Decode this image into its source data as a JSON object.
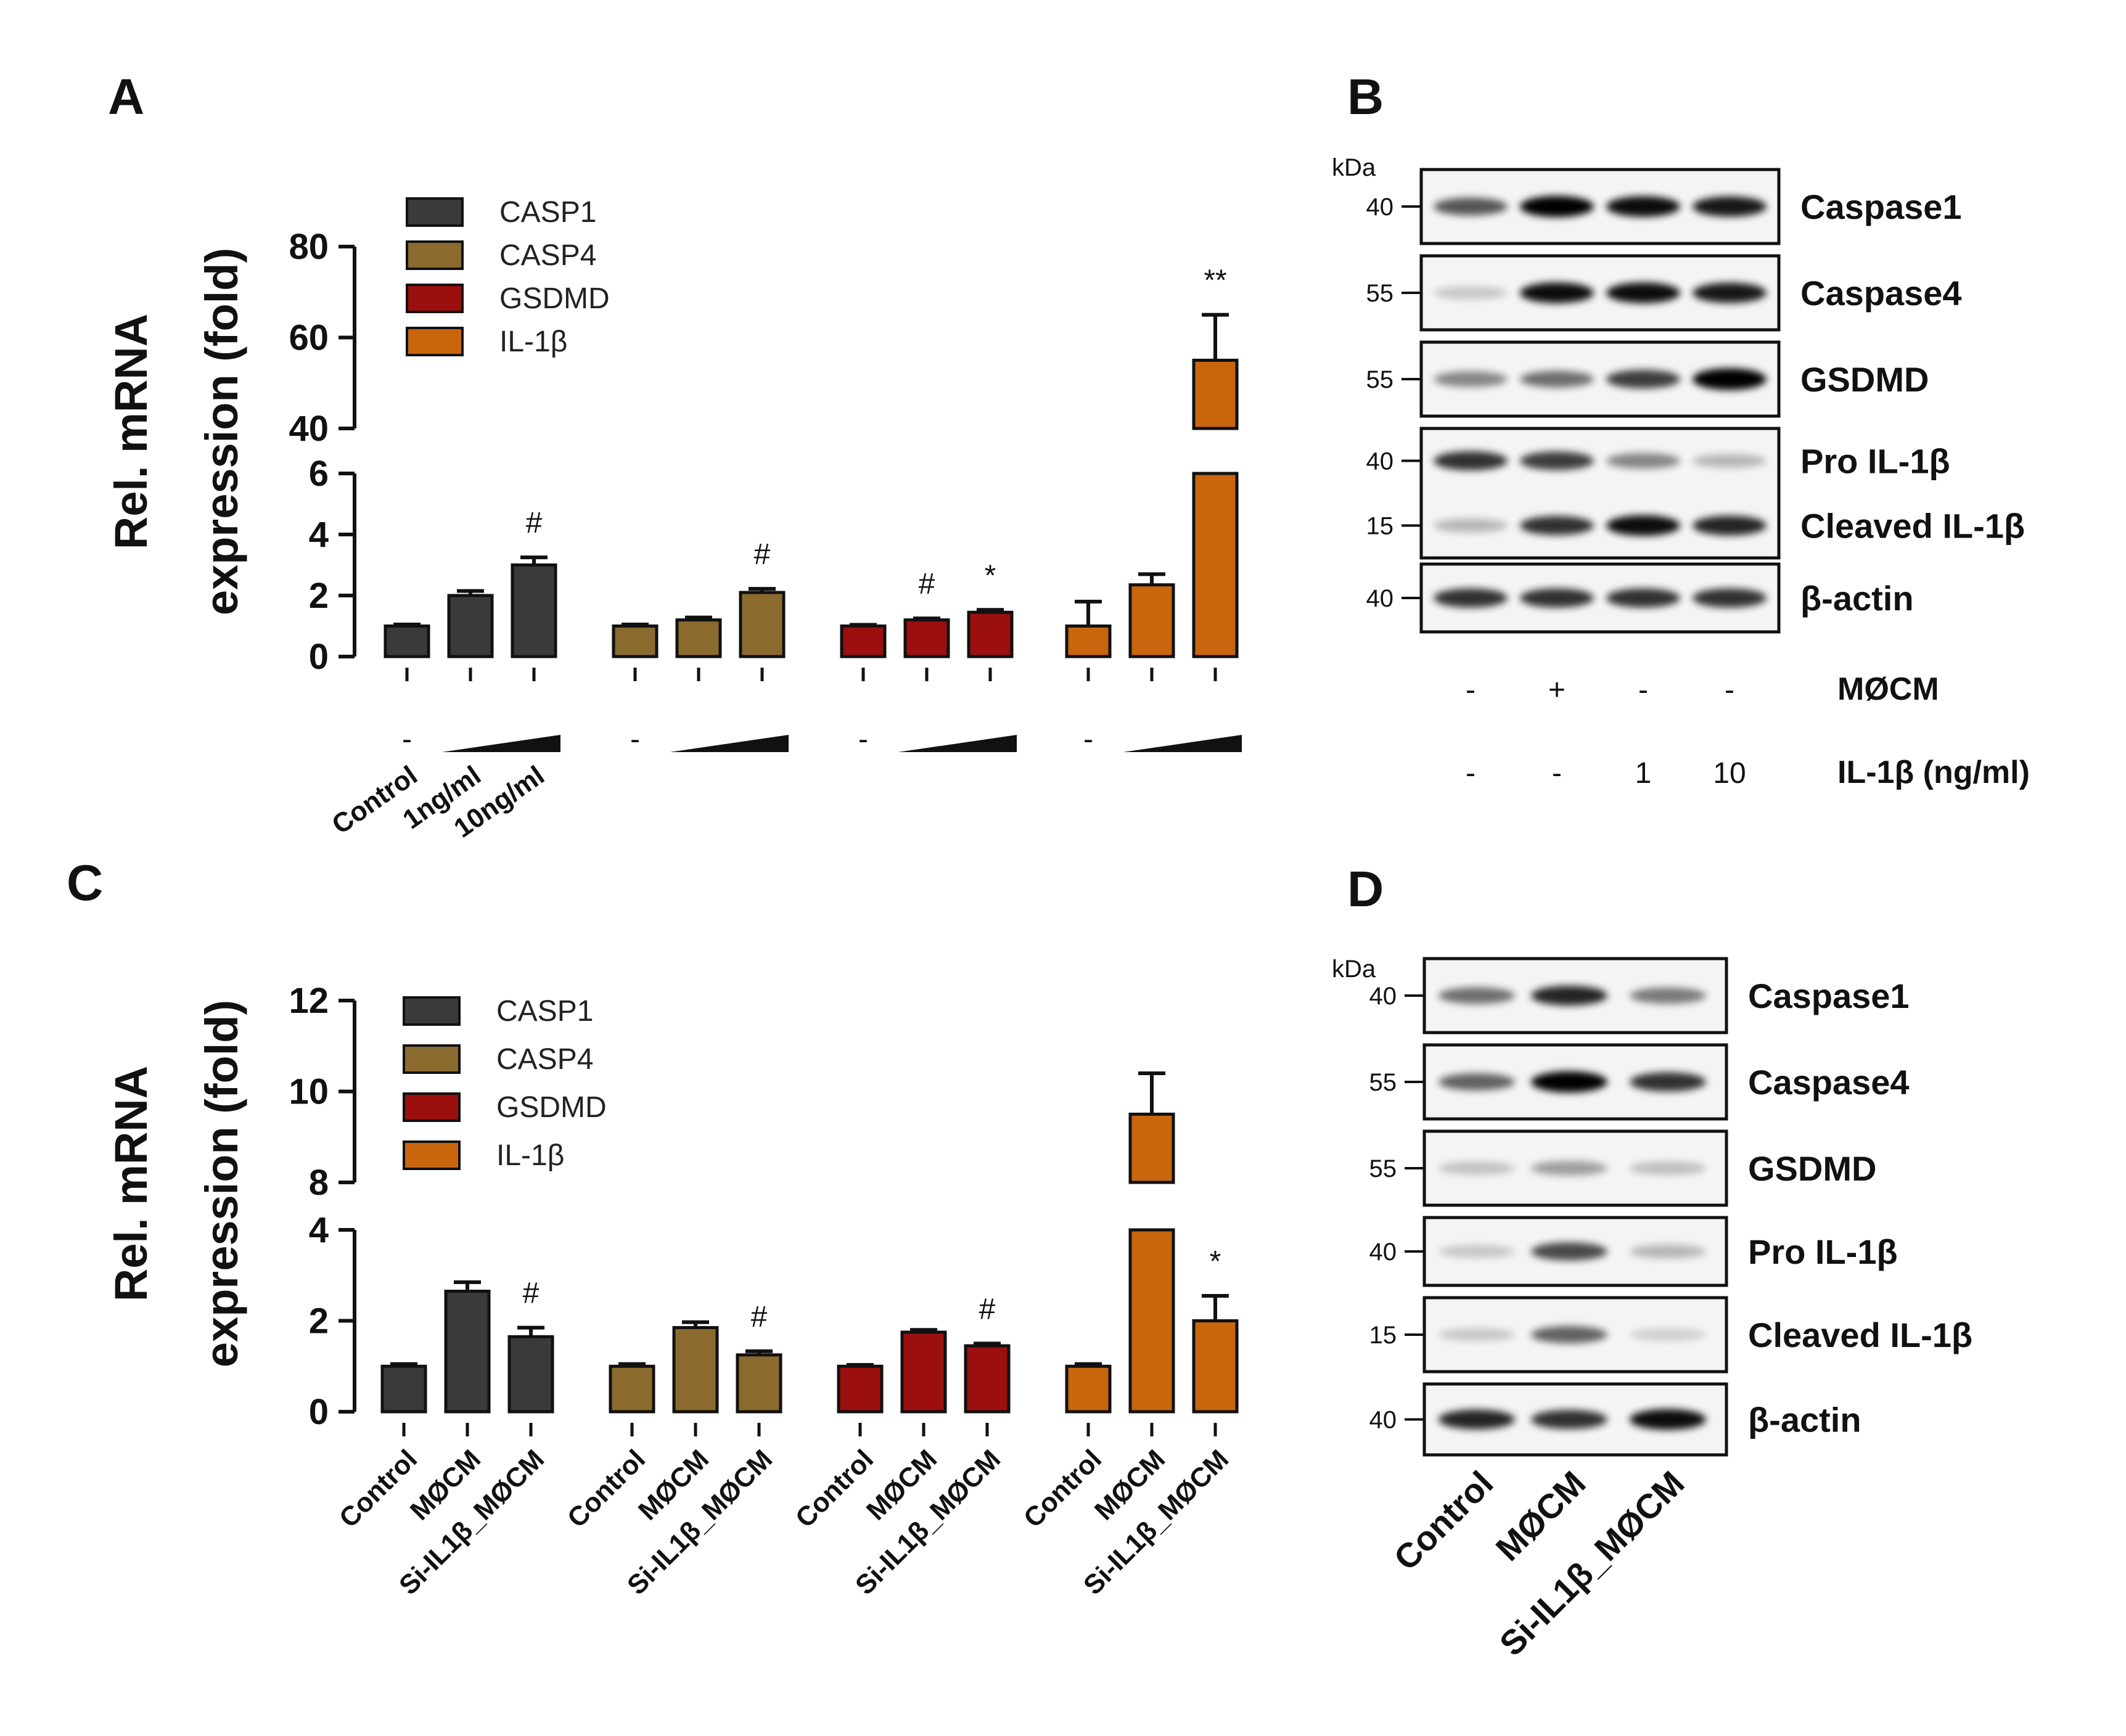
{
  "colors": {
    "CASP1": "#3a3a3a",
    "CASP4": "#8b6a2e",
    "GSDMD": "#9b0f0f",
    "IL1B": "#c8650d"
  },
  "chart_data": [
    {
      "panel": "A",
      "type": "bar",
      "ylabel_line1": "Rel. mRNA",
      "ylabel_line2": "expression (fold)",
      "ylim_lower": [
        0,
        6
      ],
      "ylim_upper": [
        40,
        80
      ],
      "yticks_lower": [
        "0",
        "2",
        "4",
        "6"
      ],
      "yticks_upper": [
        "40",
        "60",
        "80"
      ],
      "legend": [
        "CASP1",
        "CASP4",
        "GSDMD",
        "IL-1β"
      ],
      "categories": [
        "Control",
        "1ng/ml",
        "10ng/ml"
      ],
      "dash_label": "-",
      "series": [
        {
          "name": "CASP1",
          "values": [
            1.0,
            2.0,
            3.0
          ],
          "errors": [
            0.05,
            0.15,
            0.25
          ],
          "sig": [
            "",
            "",
            "#"
          ]
        },
        {
          "name": "CASP4",
          "values": [
            1.0,
            1.2,
            2.1
          ],
          "errors": [
            0.05,
            0.08,
            0.12
          ],
          "sig": [
            "",
            "",
            "#"
          ]
        },
        {
          "name": "GSDMD",
          "values": [
            1.0,
            1.2,
            1.45
          ],
          "errors": [
            0.04,
            0.05,
            0.08
          ],
          "sig": [
            "",
            "#",
            "*"
          ]
        },
        {
          "name": "IL-1β",
          "values": [
            1.0,
            2.35,
            55
          ],
          "errors": [
            0.8,
            0.35,
            10
          ],
          "sig": [
            "",
            "",
            "**"
          ]
        }
      ]
    },
    {
      "panel": "C",
      "type": "bar",
      "ylabel_line1": "Rel. mRNA",
      "ylabel_line2": "expression (fold)",
      "ylim_lower": [
        0,
        4
      ],
      "ylim_upper": [
        8,
        12
      ],
      "yticks_lower": [
        "0",
        "2",
        "4"
      ],
      "yticks_upper": [
        "8",
        "10",
        "12"
      ],
      "legend": [
        "CASP1",
        "CASP4",
        "GSDMD",
        "IL-1β"
      ],
      "categories": [
        "Control",
        "MØCM",
        "Si-IL1β_MØCM"
      ],
      "series": [
        {
          "name": "CASP1",
          "values": [
            1.0,
            2.65,
            1.65
          ],
          "errors": [
            0.05,
            0.2,
            0.2
          ],
          "sig": [
            "",
            "",
            "#"
          ]
        },
        {
          "name": "CASP4",
          "values": [
            1.0,
            1.85,
            1.25
          ],
          "errors": [
            0.05,
            0.12,
            0.08
          ],
          "sig": [
            "",
            "",
            "#"
          ]
        },
        {
          "name": "GSDMD",
          "values": [
            1.0,
            1.75,
            1.45
          ],
          "errors": [
            0.03,
            0.05,
            0.05
          ],
          "sig": [
            "",
            "",
            "#"
          ]
        },
        {
          "name": "IL-1β",
          "values": [
            1.0,
            9.5,
            2.0
          ],
          "errors": [
            0.05,
            0.9,
            0.55
          ],
          "sig": [
            "",
            "",
            "*"
          ]
        }
      ]
    }
  ],
  "panelB": {
    "letter": "B",
    "kda_label": "kDa",
    "rows": [
      {
        "label": "Caspase1",
        "kda": "40"
      },
      {
        "label": "Caspase4",
        "kda": "55"
      },
      {
        "label": "GSDMD",
        "kda": "55"
      },
      {
        "label": "Pro IL-1β",
        "kda": "40"
      },
      {
        "label": "Cleaved IL-1β",
        "kda": "15"
      },
      {
        "label": "β-actin",
        "kda": "40"
      }
    ],
    "mcm_row": {
      "values": [
        "-",
        "+",
        "-",
        "-"
      ],
      "label": "MØCM"
    },
    "il1b_row": {
      "values": [
        "-",
        "-",
        "1",
        "10"
      ],
      "label": "IL-1β (ng/ml)"
    }
  },
  "panelD": {
    "letter": "D",
    "kda_label": "kDa",
    "rows": [
      {
        "label": "Caspase1",
        "kda": "40"
      },
      {
        "label": "Caspase4",
        "kda": "55"
      },
      {
        "label": "GSDMD",
        "kda": "55"
      },
      {
        "label": "Pro IL-1β",
        "kda": "40"
      },
      {
        "label": "Cleaved IL-1β",
        "kda": "15"
      },
      {
        "label": "β-actin",
        "kda": "40"
      }
    ],
    "lanes": [
      "Control",
      "MØCM",
      "Si-IL1β_MØCM"
    ]
  }
}
